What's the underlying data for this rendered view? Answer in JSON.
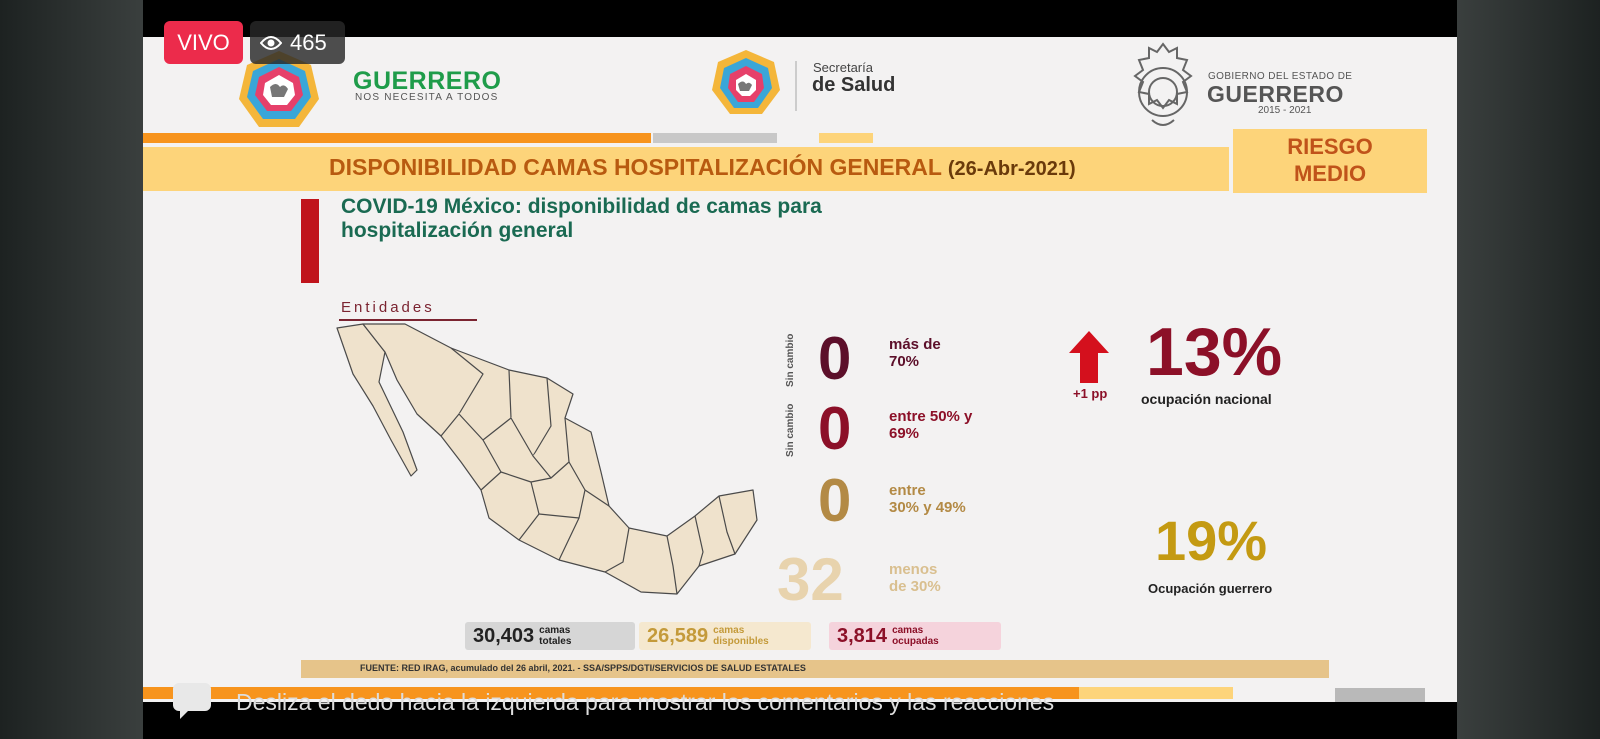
{
  "live": {
    "badge": "VIVO",
    "viewers": "465"
  },
  "header": {
    "brand_main": "GUERRERO",
    "brand_sub": "NOS NECESITA A TODOS",
    "salud_top": "Secretaría",
    "salud_main": "de Salud",
    "gob_top": "GOBIERNO DEL ESTADO DE",
    "gob_main": "GUERRERO",
    "gob_years": "2015 - 2021"
  },
  "title": {
    "main": "DISPONIBILIDAD CAMAS HOSPITALIZACIÓN GENERAL",
    "date": "(26-Abr-2021)"
  },
  "risk": {
    "line1": "RIESGO",
    "line2": "MEDIO"
  },
  "section": {
    "title_line1": "COVID-19 México: disponibilidad de camas para",
    "title_line2": "hospitalización general",
    "entidades": "Entidades"
  },
  "categories": [
    {
      "count": "0",
      "label_line1": "más de",
      "label_line2": "70%",
      "side": "Sin cambio",
      "color": "#5c0f2a"
    },
    {
      "count": "0",
      "label_line1": "entre 50% y",
      "label_line2": "69%",
      "side": "Sin cambio",
      "color": "#8c1028"
    },
    {
      "count": "0",
      "label_line1": "entre",
      "label_line2": "30% y 49%",
      "side": "",
      "color": "#b38a45"
    },
    {
      "count": "32",
      "label_line1": "menos",
      "label_line2": "de 30%",
      "side": "",
      "color": "#e8d3ad"
    }
  ],
  "national": {
    "change": "+1 pp",
    "percent": "13%",
    "label": "ocupación nacional"
  },
  "state": {
    "percent": "19%",
    "label": "Ocupación guerrero"
  },
  "totals": [
    {
      "value": "30,403",
      "label_line1": "camas",
      "label_line2": "totales"
    },
    {
      "value": "26,589",
      "label_line1": "camas",
      "label_line2": "disponibles"
    },
    {
      "value": "3,814",
      "label_line1": "camas",
      "label_line2": "ocupadas"
    }
  ],
  "source": "FUENTE: RED IRAG, acumulado del 26 abril, 2021. - SSA/SPPS/DGTI/SERVICIOS DE SALUD ESTATALES",
  "overlay": {
    "swipe_hint": "Desliza el dedo hacia la izquierda para mostrar los comentarios y las reacciones"
  },
  "colors": {
    "live_red": "#ec2b4b",
    "title_orange": "#b85a10",
    "banner_yellow": "#fdd47a",
    "covid_green": "#1a6a52"
  }
}
